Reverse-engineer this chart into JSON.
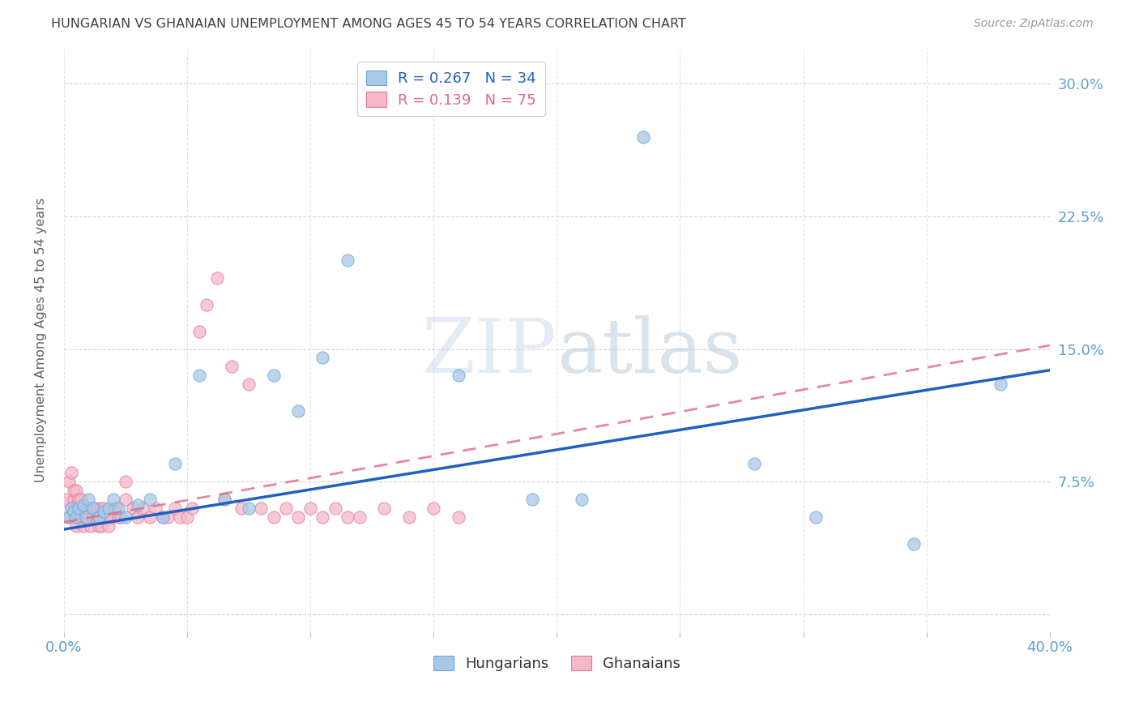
{
  "title": "HUNGARIAN VS GHANAIAN UNEMPLOYMENT AMONG AGES 45 TO 54 YEARS CORRELATION CHART",
  "source": "Source: ZipAtlas.com",
  "ylabel": "Unemployment Among Ages 45 to 54 years",
  "xlim": [
    0.0,
    0.4
  ],
  "ylim": [
    -0.01,
    0.32
  ],
  "ytick_positions": [
    0.0,
    0.075,
    0.15,
    0.225,
    0.3
  ],
  "ytick_labels": [
    "",
    "7.5%",
    "15.0%",
    "22.5%",
    "30.0%"
  ],
  "legend_R1": "R = 0.267",
  "legend_N1": "N = 34",
  "legend_R2": "R = 0.139",
  "legend_N2": "N = 75",
  "blue_scatter_color": "#a8c8e8",
  "blue_edge_color": "#6aaad4",
  "pink_scatter_color": "#f5b8c8",
  "pink_edge_color": "#e87898",
  "blue_line_color": "#2060c0",
  "pink_line_color": "#e06888",
  "title_color": "#404040",
  "axis_color": "#5a9fd4",
  "grid_color": "#c8c8c8",
  "background_color": "#ffffff",
  "watermark_zip_color": "#c8ddf0",
  "watermark_atlas_color": "#c0cce0",
  "hungarian_x": [
    0.002,
    0.003,
    0.004,
    0.005,
    0.006,
    0.008,
    0.009,
    0.01,
    0.012,
    0.014,
    0.016,
    0.018,
    0.02,
    0.022,
    0.025,
    0.03,
    0.035,
    0.04,
    0.045,
    0.055,
    0.065,
    0.075,
    0.085,
    0.095,
    0.105,
    0.115,
    0.16,
    0.19,
    0.21,
    0.235,
    0.28,
    0.305,
    0.345,
    0.38
  ],
  "hungarian_y": [
    0.055,
    0.06,
    0.058,
    0.055,
    0.06,
    0.062,
    0.055,
    0.065,
    0.06,
    0.055,
    0.058,
    0.06,
    0.065,
    0.06,
    0.055,
    0.062,
    0.065,
    0.055,
    0.085,
    0.135,
    0.065,
    0.06,
    0.135,
    0.115,
    0.145,
    0.2,
    0.135,
    0.065,
    0.065,
    0.27,
    0.085,
    0.055,
    0.04,
    0.13
  ],
  "ghanaian_x": [
    0.001,
    0.002,
    0.002,
    0.003,
    0.003,
    0.004,
    0.004,
    0.004,
    0.005,
    0.005,
    0.005,
    0.006,
    0.006,
    0.006,
    0.007,
    0.007,
    0.007,
    0.008,
    0.008,
    0.009,
    0.009,
    0.01,
    0.01,
    0.011,
    0.011,
    0.012,
    0.012,
    0.013,
    0.013,
    0.014,
    0.014,
    0.015,
    0.015,
    0.016,
    0.016,
    0.017,
    0.018,
    0.019,
    0.02,
    0.021,
    0.022,
    0.023,
    0.025,
    0.025,
    0.028,
    0.03,
    0.032,
    0.035,
    0.037,
    0.04,
    0.042,
    0.045,
    0.047,
    0.05,
    0.052,
    0.055,
    0.058,
    0.062,
    0.065,
    0.068,
    0.072,
    0.075,
    0.08,
    0.085,
    0.09,
    0.095,
    0.1,
    0.105,
    0.11,
    0.115,
    0.12,
    0.13,
    0.14,
    0.15,
    0.16
  ],
  "ghanaian_y": [
    0.065,
    0.055,
    0.075,
    0.06,
    0.08,
    0.055,
    0.065,
    0.07,
    0.05,
    0.06,
    0.07,
    0.055,
    0.06,
    0.065,
    0.055,
    0.06,
    0.065,
    0.05,
    0.055,
    0.055,
    0.06,
    0.055,
    0.06,
    0.05,
    0.06,
    0.055,
    0.06,
    0.055,
    0.06,
    0.05,
    0.055,
    0.06,
    0.05,
    0.055,
    0.06,
    0.055,
    0.05,
    0.055,
    0.06,
    0.06,
    0.055,
    0.055,
    0.065,
    0.075,
    0.06,
    0.055,
    0.06,
    0.055,
    0.06,
    0.055,
    0.055,
    0.06,
    0.055,
    0.055,
    0.06,
    0.16,
    0.175,
    0.19,
    0.065,
    0.14,
    0.06,
    0.13,
    0.06,
    0.055,
    0.06,
    0.055,
    0.06,
    0.055,
    0.06,
    0.055,
    0.055,
    0.06,
    0.055,
    0.06,
    0.055
  ],
  "hungarian_trend_x": [
    0.0,
    0.4
  ],
  "hungarian_trend_y": [
    0.048,
    0.138
  ],
  "ghanaian_trend_x": [
    0.0,
    0.4
  ],
  "ghanaian_trend_y": [
    0.052,
    0.152
  ]
}
